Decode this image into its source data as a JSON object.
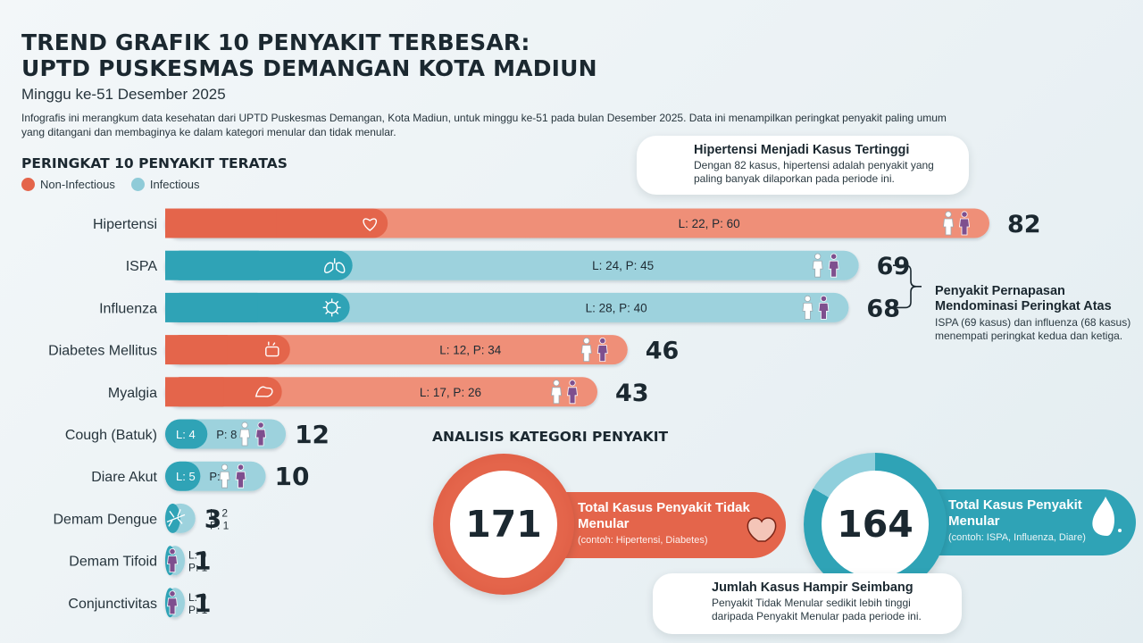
{
  "header": {
    "title_line1": "TREND GRAFIK 10 PENYAKIT TERBESAR:",
    "title_line2": "UPTD PUSKESMAS DEMANGAN KOTA MADIUN",
    "subtitle": "Minggu ke-51 Desember 2025",
    "intro": "Infografis ini merangkum data kesehatan dari UPTD Puskesmas Demangan, Kota Madiun, untuk minggu ke-51 pada bulan Desember 2025. Data ini menampilkan peringkat penyakit paling umum yang ditangani dan membaginya ke dalam kategori menular dan tidak menular."
  },
  "ranking": {
    "title": "PERINGKAT 10 PENYAKIT TERATAS",
    "legend": [
      {
        "label": "Non-Infectious",
        "color": "#e4654b"
      },
      {
        "label": "Infectious",
        "color": "#2fa3b6"
      }
    ]
  },
  "chart_data": {
    "type": "bar",
    "orientation": "horizontal",
    "categories": [
      "Hipertensi",
      "ISPA",
      "Influenza",
      "Diabetes Mellitus",
      "Myalgia",
      "Cough (Batuk)",
      "Diare Akut",
      "Demam Dengue",
      "Demam Tifoid",
      "Conjunctivitas"
    ],
    "values": [
      82,
      69,
      68,
      46,
      43,
      12,
      10,
      3,
      1,
      1
    ],
    "male": [
      22,
      24,
      28,
      12,
      17,
      4,
      5,
      2,
      0,
      0
    ],
    "female": [
      60,
      45,
      40,
      34,
      26,
      8,
      5,
      1,
      1,
      1
    ],
    "split_labels": [
      "L: 22, P: 60",
      "L: 24, P: 45",
      "L: 28, P: 40",
      "L: 12, P: 34",
      "L: 17, P: 26",
      "L: 4|P: 8",
      "L: 5|P: 5",
      "L: 2|P: 1",
      "L: 0|P: 1",
      "L: 0|P: 1"
    ],
    "category_type": [
      "non-infectious",
      "infectious",
      "infectious",
      "non-infectious",
      "non-infectious",
      "infectious",
      "infectious",
      "infectious",
      "infectious",
      "infectious"
    ],
    "icons": [
      "heart-icon",
      "lungs-icon",
      "virus-icon",
      "glucose-meter-icon",
      "muscle-icon",
      "",
      "",
      "mosquito-icon",
      "",
      ""
    ],
    "person_icons": [
      "male-female",
      "male-female",
      "male-female",
      "male-female",
      "male-female",
      "male-female",
      "male-female",
      "none",
      "female",
      "female"
    ],
    "xlim": [
      0,
      82
    ]
  },
  "callouts": {
    "top": {
      "title": "Hipertensi Menjadi Kasus Tertinggi",
      "text": "Dengan 82 kasus, hipertensi adalah penyakit yang paling banyak dilaporkan pada periode ini."
    },
    "respiratory": {
      "title": "Penyakit Pernapasan Mendominasi Peringkat Atas",
      "text": "ISPA (69 kasus) dan influenza (68 kasus) menempati peringkat kedua dan ketiga."
    },
    "bottom": {
      "title": "Jumlah Kasus Hampir Seimbang",
      "text": "Penyakit Tidak Menular sedikit lebih tinggi daripada Penyakit Menular pada periode ini."
    }
  },
  "category_analysis": {
    "title": "ANALISIS KATEGORI PENYAKIT",
    "non_infectious": {
      "total": "171",
      "value": 171,
      "label": "Total Kasus Penyakit Tidak Menular",
      "example": "(contoh: Hipertensi, Diabetes)",
      "color": "#e4654b",
      "icon": "heart-icon"
    },
    "infectious": {
      "total": "164",
      "value": 164,
      "label": "Total Kasus Penyakit Menular",
      "example": "(contoh: ISPA, Influenza, Diare)",
      "color": "#2fa3b6",
      "icon": "cough-head-icon"
    }
  },
  "colors": {
    "non_infectious_dark": "#e4654b",
    "non_infectious_light": "#ef8f78",
    "infectious_dark": "#2fa3b6",
    "infectious_light": "#9dd2dd",
    "female": "#7e4f8e",
    "male": "#ffffff"
  }
}
